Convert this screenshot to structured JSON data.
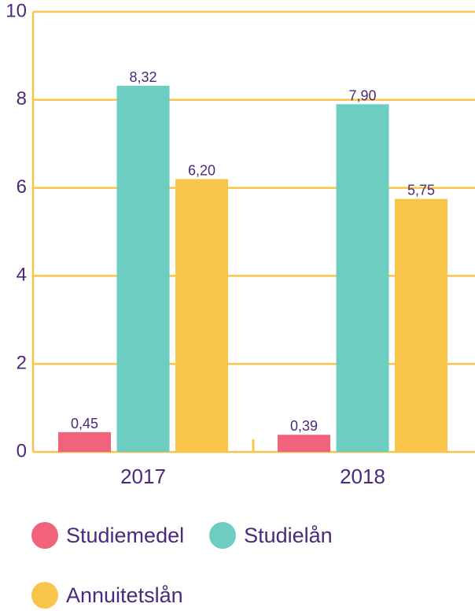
{
  "chart_data": {
    "type": "bar",
    "categories": [
      "2017",
      "2018"
    ],
    "series": [
      {
        "name": "Studiemedel",
        "values": [
          0.45,
          0.39
        ],
        "labels": [
          "0,45",
          "0,39"
        ],
        "color": "#f0637a"
      },
      {
        "name": "Studielån",
        "values": [
          8.32,
          7.9
        ],
        "labels": [
          "8,32",
          "7,90"
        ],
        "color": "#6ecdc1"
      },
      {
        "name": "Annuitetslån",
        "values": [
          6.2,
          5.75
        ],
        "labels": [
          "6,20",
          "5,75"
        ],
        "color": "#f8c54a"
      }
    ],
    "ylim": [
      0,
      10
    ],
    "yticks": [
      0,
      2,
      4,
      6,
      8,
      10
    ],
    "ytick_labels": [
      "0",
      "2",
      "4",
      "6",
      "8",
      "10"
    ],
    "grid": true,
    "legend_position": "bottom",
    "gridline_color": "#f8c54a",
    "text_color": "#4a2a7a"
  }
}
